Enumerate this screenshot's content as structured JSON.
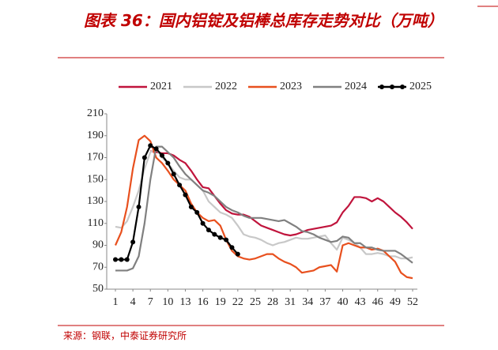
{
  "chart_data": {
    "type": "line",
    "title": "图表 36：国内铝锭及铝棒总库存走势对比（万吨）",
    "source": "来源：钢联，中泰证券研究所",
    "x": [
      1,
      2,
      3,
      4,
      5,
      6,
      7,
      8,
      9,
      10,
      11,
      12,
      13,
      14,
      15,
      16,
      17,
      18,
      19,
      20,
      21,
      22,
      23,
      24,
      25,
      26,
      27,
      28,
      29,
      30,
      31,
      32,
      33,
      34,
      35,
      36,
      37,
      38,
      39,
      40,
      41,
      42,
      43,
      44,
      45,
      46,
      47,
      48,
      49,
      50,
      51,
      52
    ],
    "xlim": [
      1,
      52
    ],
    "xticks": [
      1,
      4,
      7,
      10,
      13,
      16,
      19,
      22,
      25,
      28,
      31,
      34,
      37,
      40,
      43,
      46,
      49,
      52
    ],
    "ylim": [
      50,
      210
    ],
    "yticks": [
      50,
      70,
      90,
      110,
      130,
      150,
      170,
      190,
      210
    ],
    "grid": false,
    "legend": "top",
    "series": [
      {
        "name": "2021",
        "color": "#c0143c",
        "values": [
          null,
          null,
          null,
          null,
          null,
          null,
          176,
          175,
          174,
          174,
          172,
          168,
          165,
          158,
          150,
          143,
          142,
          135,
          128,
          122,
          119,
          118,
          118,
          116,
          112,
          108,
          106,
          104,
          102,
          100,
          99,
          100,
          102,
          104,
          105,
          106,
          107,
          108,
          111,
          120,
          126,
          134,
          134,
          133,
          130,
          133,
          130,
          125,
          120,
          116,
          111,
          105
        ]
      },
      {
        "name": "2022",
        "color": "#c8c8c8",
        "values": [
          107,
          106,
          112,
          125,
          140,
          160,
          175,
          178,
          170,
          165,
          158,
          152,
          150,
          150,
          145,
          140,
          130,
          125,
          120,
          118,
          115,
          108,
          100,
          98,
          97,
          95,
          92,
          90,
          92,
          93,
          95,
          97,
          96,
          96,
          97,
          98,
          99,
          92,
          86,
          97,
          95,
          92,
          88,
          82,
          82,
          83,
          82,
          80,
          80,
          78,
          78,
          79
        ]
      },
      {
        "name": "2023",
        "color": "#e8501e",
        "values": [
          90,
          102,
          125,
          160,
          186,
          190,
          185,
          170,
          165,
          158,
          150,
          145,
          140,
          128,
          120,
          115,
          112,
          113,
          108,
          95,
          85,
          80,
          78,
          77,
          78,
          80,
          82,
          82,
          78,
          75,
          73,
          70,
          65,
          66,
          67,
          70,
          71,
          72,
          66,
          90,
          92,
          90,
          88,
          88,
          86,
          87,
          85,
          80,
          75,
          65,
          61,
          60
        ]
      },
      {
        "name": "2024",
        "color": "#808080",
        "values": [
          67,
          67,
          67,
          69,
          80,
          110,
          150,
          180,
          180,
          175,
          170,
          162,
          155,
          150,
          145,
          140,
          138,
          135,
          130,
          125,
          122,
          120,
          117,
          115,
          115,
          115,
          114,
          113,
          112,
          113,
          110,
          107,
          103,
          102,
          100,
          97,
          95,
          93,
          94,
          98,
          97,
          92,
          92,
          88,
          88,
          86,
          85,
          85,
          85,
          82,
          78,
          74
        ]
      },
      {
        "name": "2025",
        "color": "#000000",
        "marker": "circle",
        "values": [
          77,
          77,
          77,
          93,
          125,
          170,
          181,
          178,
          172,
          165,
          155,
          145,
          136,
          125,
          120,
          110,
          104,
          100,
          97,
          95,
          88,
          82,
          null,
          null,
          null,
          null,
          null,
          null,
          null,
          null,
          null,
          null,
          null,
          null,
          null,
          null,
          null,
          null,
          null,
          null,
          null,
          null,
          null,
          null,
          null,
          null,
          null,
          null,
          null,
          null,
          null,
          null
        ]
      }
    ]
  }
}
